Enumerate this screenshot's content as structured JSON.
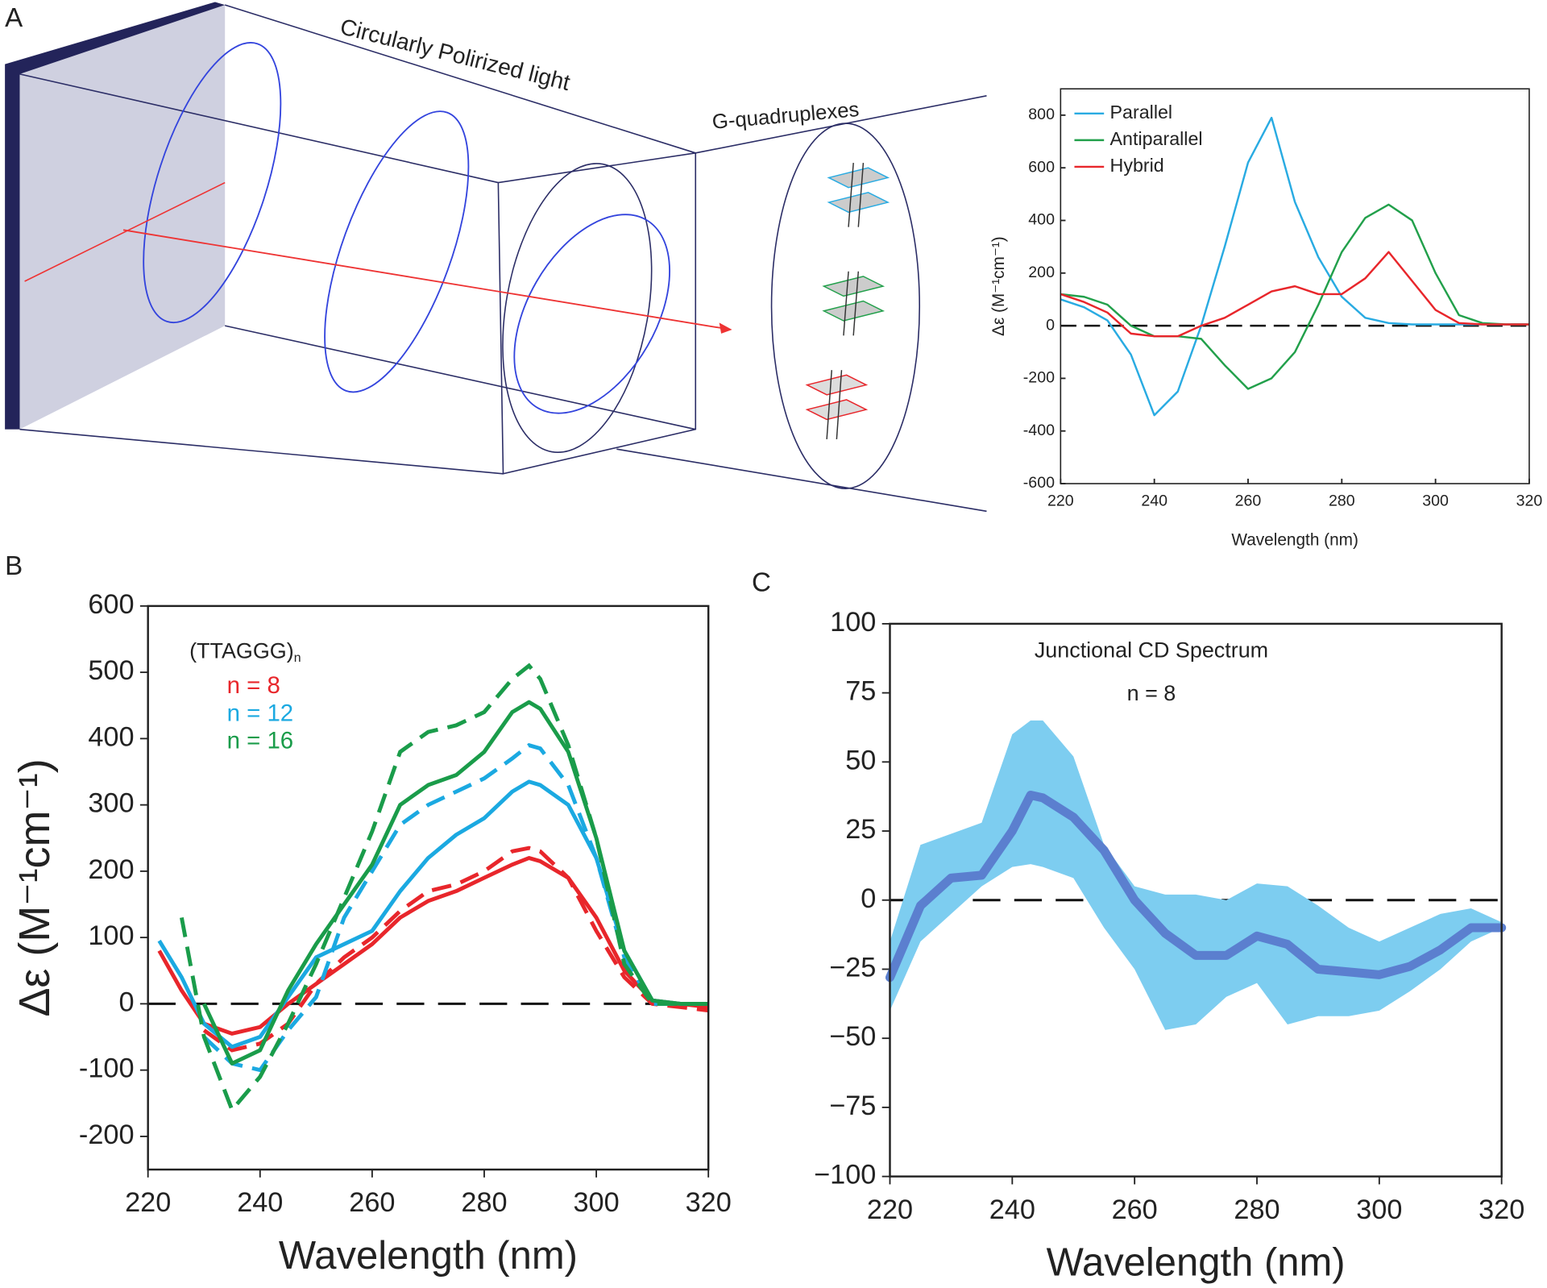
{
  "panels": {
    "a": "A",
    "b": "B",
    "c": "C"
  },
  "diagram": {
    "light_label": "Circularly Polirized light",
    "sample_label": "G-quadruplexes"
  },
  "chart_data": [
    {
      "type": "line",
      "x_label": "Wavelength (nm)",
      "y_label": "Δε (M⁻¹cm⁻¹)",
      "x": [
        220,
        225,
        230,
        235,
        240,
        245,
        250,
        255,
        260,
        265,
        270,
        275,
        280,
        285,
        290,
        295,
        300,
        305,
        310,
        315,
        320
      ],
      "series": [
        {
          "name": "Parallel",
          "color": "#29abe2",
          "values": [
            100,
            70,
            20,
            -110,
            -340,
            -250,
            0,
            300,
            620,
            790,
            470,
            260,
            110,
            30,
            10,
            5,
            5,
            5,
            5,
            5,
            5
          ]
        },
        {
          "name": "Antiparallel",
          "color": "#22a04b",
          "values": [
            120,
            110,
            80,
            0,
            -40,
            -40,
            -50,
            -150,
            -240,
            -200,
            -100,
            80,
            280,
            410,
            460,
            400,
            200,
            40,
            10,
            5,
            5
          ]
        },
        {
          "name": "Hybrid",
          "color": "#e8262b",
          "values": [
            120,
            90,
            50,
            -30,
            -40,
            -40,
            0,
            30,
            80,
            130,
            150,
            120,
            120,
            180,
            280,
            170,
            60,
            10,
            5,
            5,
            5
          ]
        }
      ],
      "xlim": [
        220,
        320
      ],
      "ylim": [
        -600,
        900
      ],
      "xticks": [
        220,
        240,
        260,
        280,
        300,
        320
      ],
      "yticks": [
        -600,
        -400,
        -200,
        0,
        200,
        400,
        600,
        800
      ],
      "legend": "upper left",
      "zero_line": true
    },
    {
      "type": "line",
      "x_label": "Wavelength (nm)",
      "y_label": "Δε (M⁻¹cm⁻¹)",
      "annotation": "(TTAGGG)",
      "annotation_sub": "n",
      "x": [
        222,
        226,
        230,
        235,
        240,
        245,
        250,
        255,
        260,
        265,
        270,
        275,
        280,
        285,
        288,
        290,
        295,
        300,
        305,
        310,
        315,
        320
      ],
      "series": [
        {
          "name": "n = 8",
          "color": "#e8262b",
          "values": [
            80,
            20,
            -30,
            -45,
            -35,
            0,
            30,
            60,
            90,
            130,
            155,
            170,
            190,
            210,
            220,
            215,
            190,
            130,
            50,
            5,
            0,
            -5
          ],
          "dashed_values": [
            null,
            null,
            -40,
            -70,
            -60,
            -30,
            30,
            70,
            100,
            140,
            170,
            180,
            200,
            230,
            235,
            230,
            190,
            110,
            40,
            0,
            -5,
            -10
          ]
        },
        {
          "name": "n = 12",
          "color": "#1ba9e1",
          "values": [
            95,
            40,
            -30,
            -65,
            -50,
            10,
            70,
            90,
            110,
            170,
            220,
            255,
            280,
            320,
            335,
            330,
            300,
            220,
            80,
            5,
            0,
            0
          ],
          "dashed_values": [
            null,
            null,
            -50,
            -90,
            -100,
            -40,
            10,
            130,
            200,
            270,
            300,
            320,
            340,
            370,
            390,
            385,
            330,
            220,
            70,
            0,
            0,
            0
          ]
        },
        {
          "name": "n = 16",
          "color": "#1a9c4a",
          "values": [
            null,
            null,
            0,
            -90,
            -70,
            20,
            90,
            150,
            210,
            300,
            330,
            345,
            380,
            440,
            455,
            445,
            380,
            250,
            80,
            5,
            0,
            0
          ],
          "dashed_values": [
            null,
            130,
            -50,
            -160,
            -110,
            -30,
            60,
            160,
            260,
            380,
            410,
            420,
            440,
            490,
            510,
            490,
            390,
            250,
            60,
            0,
            0,
            0
          ]
        }
      ],
      "xlim": [
        220,
        320
      ],
      "ylim": [
        -250,
        600
      ],
      "xticks": [
        220,
        240,
        260,
        280,
        300,
        320
      ],
      "yticks": [
        -200,
        -100,
        0,
        100,
        200,
        300,
        400,
        500,
        600
      ],
      "legend": "upper left",
      "zero_line": true
    },
    {
      "type": "line",
      "title": "Junctional CD Spectrum",
      "subtitle": "n = 8",
      "x_label": "Wavelength (nm)",
      "x": [
        220,
        225,
        230,
        235,
        240,
        243,
        245,
        250,
        255,
        260,
        265,
        270,
        275,
        280,
        285,
        290,
        295,
        300,
        305,
        310,
        315,
        320
      ],
      "values": [
        -28,
        -2,
        8,
        9,
        25,
        38,
        37,
        30,
        18,
        0,
        -12,
        -20,
        -20,
        -13,
        -16,
        -25,
        -26,
        -27,
        -24,
        -18,
        -10,
        -10
      ],
      "upper": [
        -15,
        20,
        24,
        28,
        60,
        65,
        65,
        52,
        20,
        5,
        2,
        2,
        0,
        6,
        5,
        -2,
        -10,
        -15,
        -10,
        -5,
        -3,
        -8
      ],
      "lower": [
        -40,
        -15,
        -5,
        5,
        12,
        13,
        12,
        8,
        -10,
        -25,
        -47,
        -45,
        -35,
        -30,
        -45,
        -42,
        -42,
        -40,
        -33,
        -25,
        -15,
        -10
      ],
      "color": "#5b7fcf",
      "band_color": "#7dcdf0",
      "xlim": [
        220,
        320
      ],
      "ylim": [
        -100,
        100
      ],
      "xticks": [
        220,
        240,
        260,
        280,
        300,
        320
      ],
      "yticks": [
        {
          "value": -100,
          "label": "−100"
        },
        {
          "value": -75,
          "label": "−75"
        },
        {
          "value": -50,
          "label": "−50"
        },
        {
          "value": -25,
          "label": "−25"
        },
        0,
        25,
        50,
        75,
        100
      ],
      "zero_line": true
    }
  ]
}
